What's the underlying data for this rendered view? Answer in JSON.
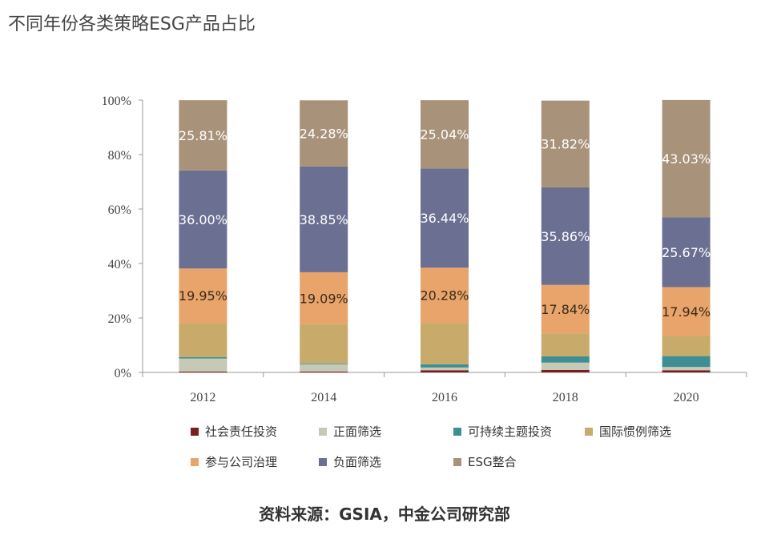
{
  "chart_data": {
    "type": "bar",
    "stacked": true,
    "title": "不同年份各类策略ESG产品占比",
    "categories": [
      "2012",
      "2014",
      "2016",
      "2018",
      "2020"
    ],
    "ylim": [
      0,
      100
    ],
    "yticks": [
      "0%",
      "20%",
      "40%",
      "60%",
      "80%",
      "100%"
    ],
    "legend_position": "bottom",
    "series": [
      {
        "name": "社会责任投资",
        "color": "#7a1f1f",
        "values": [
          0.3,
          0.3,
          0.8,
          0.9,
          0.8
        ]
      },
      {
        "name": "正面筛选",
        "color": "#c5c9b6",
        "values": [
          4.8,
          2.7,
          1.0,
          2.7,
          1.2
        ]
      },
      {
        "name": "可持续主题投资",
        "color": "#3f8e94",
        "values": [
          0.5,
          0.3,
          1.2,
          2.3,
          4.0
        ]
      },
      {
        "name": "国际惯例筛选",
        "color": "#c8aa6a",
        "values": [
          12.6,
          14.4,
          15.2,
          8.4,
          7.4
        ]
      },
      {
        "name": "参与公司治理",
        "color": "#e8a46a",
        "values": [
          19.95,
          19.09,
          20.28,
          17.84,
          17.94
        ]
      },
      {
        "name": "负面筛选",
        "color": "#6b6f92",
        "values": [
          36.0,
          38.85,
          36.44,
          35.86,
          25.67
        ]
      },
      {
        "name": "ESG整合",
        "color": "#a8927a",
        "values": [
          25.81,
          24.28,
          25.04,
          31.82,
          43.03
        ]
      }
    ],
    "data_labels": {
      "参与公司治理": [
        "19.95%",
        "19.09%",
        "20.28%",
        "17.84%",
        "17.94%"
      ],
      "负面筛选": [
        "36.00%",
        "38.85%",
        "36.44%",
        "35.86%",
        "25.67%"
      ],
      "ESG整合": [
        "25.81%",
        "24.28%",
        "25.04%",
        "31.82%",
        "43.03%"
      ]
    }
  },
  "source": "资料来源：GSIA，中金公司研究部"
}
